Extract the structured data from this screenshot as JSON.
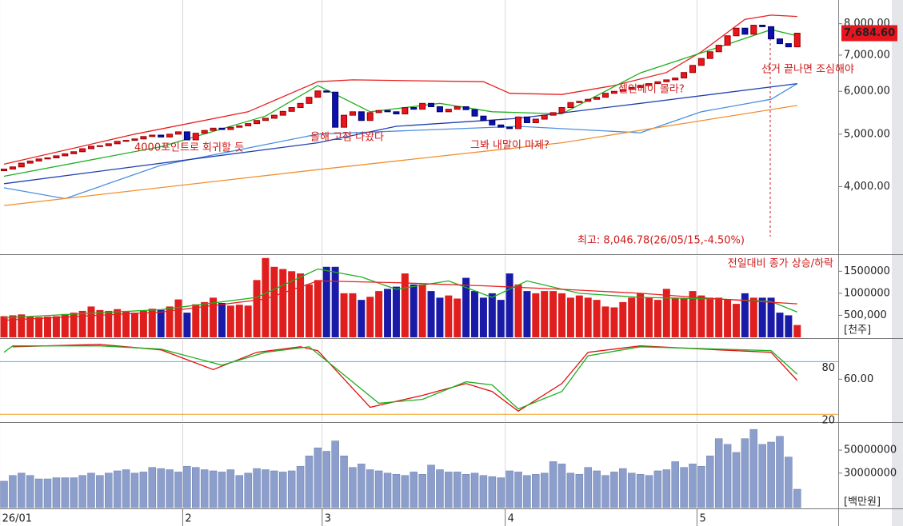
{
  "chart_data": [
    {
      "type": "candlestick",
      "log_scale": true,
      "ylim": [
        3000,
        8850
      ],
      "xlim": [
        -0.46,
        95.7
      ],
      "yticks": [
        {
          "value": 4000,
          "label": "4,000.00"
        },
        {
          "value": 5000,
          "label": "5,000.00"
        },
        {
          "value": 6000,
          "label": "6,000.00"
        },
        {
          "value": 7000,
          "label": "7,000.00"
        },
        {
          "value": 8000,
          "label": "8,000.00"
        }
      ],
      "up_color": "#e8141e",
      "down_color": "#0c10b0",
      "open": [
        4280,
        4310,
        4350,
        4420,
        4460,
        4500,
        4520,
        4560,
        4600,
        4640,
        4700,
        4750,
        4760,
        4800,
        4850,
        4870,
        4900,
        4950,
        4980,
        4940,
        5000,
        5050,
        4880,
        5020,
        5080,
        5130,
        5100,
        5150,
        5180,
        5230,
        5300,
        5350,
        5420,
        5510,
        5600,
        5700,
        5850,
        6010,
        5980,
        5150,
        5420,
        5500,
        5300,
        5480,
        5530,
        5500,
        5450,
        5600,
        5560,
        5700,
        5620,
        5500,
        5560,
        5620,
        5550,
        5400,
        5300,
        5200,
        5150,
        5120,
        5380,
        5250,
        5330,
        5420,
        5480,
        5600,
        5720,
        5750,
        5800,
        5850,
        5950,
        6000,
        6050,
        6100,
        6150,
        6200,
        6250,
        6300,
        6350,
        6500,
        6700,
        6900,
        7100,
        7300,
        7600,
        7850,
        7650,
        7950,
        7900,
        7500,
        7350,
        7250
      ],
      "close": [
        4310,
        4350,
        4420,
        4460,
        4500,
        4520,
        4560,
        4600,
        4640,
        4700,
        4750,
        4760,
        4800,
        4850,
        4870,
        4900,
        4950,
        4980,
        4940,
        5000,
        5050,
        4880,
        5020,
        5080,
        5130,
        5100,
        5150,
        5180,
        5230,
        5300,
        5350,
        5420,
        5510,
        5600,
        5700,
        5850,
        6010,
        5980,
        5150,
        5420,
        5500,
        5300,
        5480,
        5530,
        5500,
        5450,
        5600,
        5560,
        5700,
        5620,
        5500,
        5560,
        5620,
        5550,
        5400,
        5300,
        5200,
        5150,
        5120,
        5380,
        5250,
        5330,
        5420,
        5480,
        5600,
        5720,
        5750,
        5800,
        5850,
        5950,
        6000,
        6050,
        6100,
        6150,
        6200,
        6250,
        6300,
        6350,
        6500,
        6700,
        6900,
        7100,
        7300,
        7600,
        7850,
        7650,
        7950,
        7900,
        7500,
        7350,
        7250,
        7684.6
      ],
      "series": [
        {
          "color": "#e82020",
          "x": [
            0,
            15,
            28,
            36,
            40,
            55,
            58,
            64,
            70,
            76,
            80,
            85,
            88,
            91
          ],
          "values": [
            4400,
            5000,
            5500,
            6250,
            6300,
            6250,
            5950,
            5920,
            6150,
            6500,
            7100,
            8150,
            8300,
            8250
          ]
        },
        {
          "color": "#20b020",
          "x": [
            0,
            18,
            30,
            36,
            42,
            50,
            56,
            64,
            73,
            82,
            88,
            91
          ],
          "values": [
            4180,
            4740,
            5400,
            6150,
            5500,
            5700,
            5500,
            5450,
            6490,
            7240,
            7800,
            7600
          ]
        },
        {
          "color": "#4a90e0",
          "x": [
            0,
            7,
            18,
            36,
            59,
            73,
            80,
            88,
            91
          ],
          "values": [
            3980,
            3800,
            4380,
            5000,
            5170,
            5030,
            5500,
            5800,
            6200
          ]
        },
        {
          "color": "#2040b0",
          "x": [
            0,
            36,
            45,
            59,
            73,
            91
          ],
          "values": [
            4050,
            4820,
            5170,
            5350,
            5700,
            6200
          ]
        },
        {
          "color": "#f09030",
          "x": [
            0,
            36,
            64,
            91
          ],
          "values": [
            3690,
            4300,
            4820,
            5650
          ]
        }
      ],
      "last_price": {
        "value": 7684.6,
        "label": "7,684.60"
      },
      "annotations": [
        "4000포인트로 회귀할 듯",
        "올해 고점 나왔다",
        "그봐 내말이 마제?",
        "셀인메이 몰라?",
        "선거 끝나면 조심해야",
        "최고: 8,046.78(26/05/15,-4.50%)"
      ]
    },
    {
      "type": "volume",
      "ylim": [
        0,
        1850000
      ],
      "xlim": [
        -0.46,
        95.7
      ],
      "yticks": [
        {
          "value": 500000,
          "label": "500,000"
        },
        1000000,
        1500000
      ],
      "up_color": "#e01e1e",
      "down_color": "#1a1aa8",
      "subtitle": "전일대비 종가 상승/하락",
      "unit": "[천주]",
      "values": [
        480000,
        500000,
        520000,
        480000,
        460000,
        470000,
        480000,
        530000,
        560000,
        600000,
        700000,
        620000,
        600000,
        640000,
        600000,
        560000,
        600000,
        650000,
        620000,
        700000,
        860000,
        560000,
        750000,
        800000,
        900000,
        780000,
        720000,
        740000,
        720000,
        1300000,
        1800000,
        1600000,
        1550000,
        1500000,
        1450000,
        1200000,
        1300000,
        1600000,
        1600000,
        1000000,
        1000000,
        850000,
        920000,
        1050000,
        1100000,
        1150000,
        1450000,
        1200000,
        1200000,
        1050000,
        900000,
        950000,
        880000,
        1350000,
        1050000,
        900000,
        1000000,
        850000,
        1450000,
        1200000,
        1050000,
        1000000,
        1050000,
        1050000,
        1000000,
        900000,
        950000,
        900000,
        850000,
        700000,
        680000,
        800000,
        900000,
        1000000,
        900000,
        850000,
        1100000,
        900000,
        880000,
        1050000,
        950000,
        900000,
        900000,
        870000,
        760000,
        1000000,
        900000,
        900000,
        900000,
        560000,
        500000,
        280000
      ],
      "series": [
        {
          "color": "#20b020",
          "x": [
            0,
            18,
            29,
            36,
            41,
            45,
            51,
            56,
            60,
            66,
            73,
            82,
            88,
            91
          ],
          "values": [
            444000,
            630000,
            907000,
            1550000,
            1370000,
            1090000,
            1280000,
            907000,
            1280000,
            1000000,
            907000,
            870000,
            815000,
            574000
          ]
        },
        {
          "color": "#e82020",
          "x": [
            0,
            18,
            30,
            36,
            45,
            55,
            64,
            73,
            82,
            91
          ],
          "values": [
            389000,
            574000,
            870000,
            1280000,
            1240000,
            1170000,
            1090000,
            1000000,
            870000,
            760000
          ]
        }
      ]
    },
    {
      "type": "line",
      "ylim": [
        12,
        105
      ],
      "xlim": [
        -0.46,
        95.7
      ],
      "yticks": [
        {
          "value": 60,
          "label": "60.00"
        }
      ],
      "ref_lines": [
        {
          "value": 80,
          "label": "80",
          "color": "#40b8f0"
        },
        {
          "value": 20,
          "label": "20",
          "color": "#f0a020"
        }
      ],
      "series": [
        {
          "color": "#e01010",
          "x": [
            1,
            11,
            18,
            24,
            29,
            34,
            36,
            42,
            48,
            53,
            56,
            59,
            64,
            67,
            73,
            82,
            88,
            91
          ],
          "values": [
            97,
            99.7,
            93.4,
            71,
            90.7,
            97,
            92.5,
            28,
            41.5,
            55,
            46,
            23.6,
            55,
            90.7,
            98,
            93.4,
            90.7,
            58.5
          ]
        },
        {
          "color": "#20b020",
          "x": [
            0,
            1,
            11,
            18,
            25,
            30,
            35,
            38,
            43,
            48,
            53,
            56,
            59,
            64,
            67,
            73,
            82,
            88,
            91
          ],
          "values": [
            90.7,
            98,
            98,
            94.3,
            76,
            90.7,
            97,
            73,
            32.6,
            37,
            57,
            53.5,
            26,
            46,
            86.7,
            97,
            94.3,
            92.5,
            65.7
          ]
        }
      ]
    },
    {
      "type": "bar",
      "ylim": [
        0,
        73000000
      ],
      "xlim": [
        -0.46,
        95.7
      ],
      "color": "#8c9ecb",
      "unit": "[백만원]",
      "yticks": [
        50000000,
        30000000
      ],
      "xticks": [
        {
          "value": -0.5,
          "label": "26/01"
        },
        {
          "value": 20.5,
          "label": "2"
        },
        {
          "value": 36.5,
          "label": "3"
        },
        {
          "value": 57.5,
          "label": "4"
        },
        {
          "value": 79.5,
          "label": "5"
        }
      ],
      "values": [
        23000000,
        28000000,
        30000000,
        28000000,
        25000000,
        25000000,
        26000000,
        26000000,
        26000000,
        28000000,
        30000000,
        28000000,
        30000000,
        32000000,
        33000000,
        30000000,
        31000000,
        35000000,
        34000000,
        33000000,
        31000000,
        36000000,
        35000000,
        33000000,
        32000000,
        31000000,
        33000000,
        28000000,
        30000000,
        34000000,
        33000000,
        32000000,
        31000000,
        32000000,
        36000000,
        45000000,
        52000000,
        49000000,
        58000000,
        45000000,
        35000000,
        38000000,
        33000000,
        32000000,
        30000000,
        29000000,
        28000000,
        31000000,
        29000000,
        37000000,
        33000000,
        31000000,
        31000000,
        29000000,
        30000000,
        28000000,
        27000000,
        26000000,
        32000000,
        31000000,
        28000000,
        29000000,
        30000000,
        40000000,
        38000000,
        30000000,
        29000000,
        35000000,
        32000000,
        28000000,
        31000000,
        34000000,
        30000000,
        29000000,
        28000000,
        32000000,
        33000000,
        40000000,
        35000000,
        38000000,
        36000000,
        45000000,
        60000000,
        55000000,
        48000000,
        60000000,
        68000000,
        55000000,
        57000000,
        62000000,
        44000000,
        16000000
      ]
    }
  ]
}
